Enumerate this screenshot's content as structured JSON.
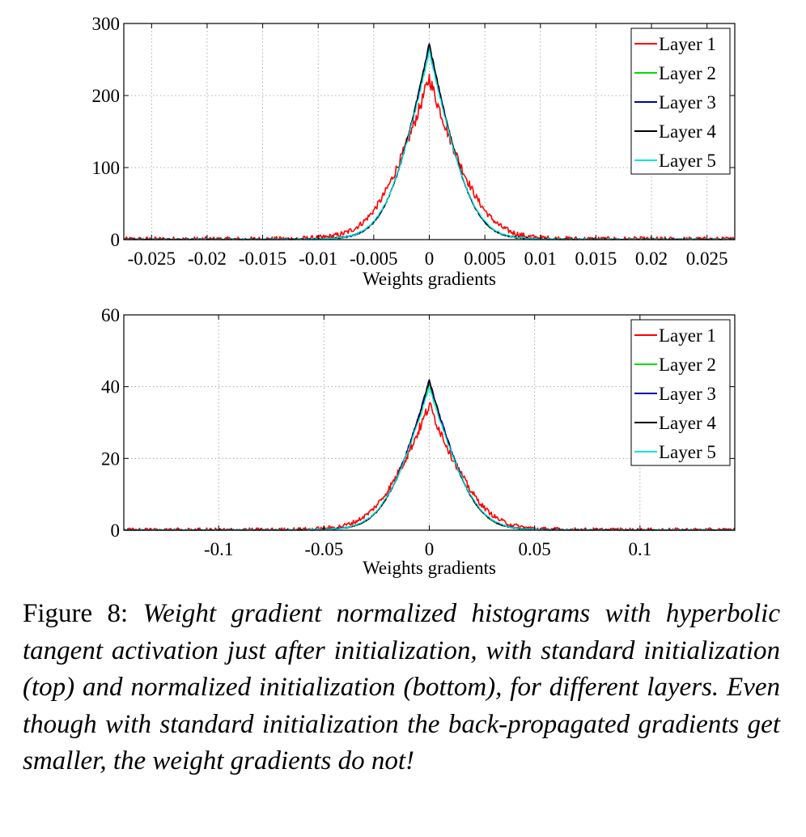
{
  "chart_data": [
    {
      "type": "line",
      "id": "top",
      "xlabel": "Weights gradients",
      "ylabel": "",
      "xlim": [
        -0.0275,
        0.0275
      ],
      "ylim": [
        0,
        300
      ],
      "xticks": [
        -0.025,
        -0.02,
        -0.015,
        -0.01,
        -0.005,
        0,
        0.005,
        0.01,
        0.015,
        0.02,
        0.025
      ],
      "xtick_labels": [
        "-0.025",
        "-0.02",
        "-0.015",
        "-0.01",
        "-0.005",
        "0",
        "0.005",
        "0.01",
        "0.015",
        "0.02",
        "0.025"
      ],
      "yticks": [
        0,
        100,
        200,
        300
      ],
      "ytick_labels": [
        "0",
        "100",
        "200",
        "300"
      ],
      "grid": true,
      "legend": "top-right",
      "series": [
        {
          "name": "Layer 1",
          "color": "#ff0000",
          "peak": 225,
          "width": 0.0024,
          "noise": 10
        },
        {
          "name": "Layer 2",
          "color": "#00dd00",
          "peak": 270,
          "width": 0.0019,
          "noise": 3
        },
        {
          "name": "Layer 3",
          "color": "#0000aa",
          "peak": 272,
          "width": 0.0019,
          "noise": 3
        },
        {
          "name": "Layer 4",
          "color": "#000000",
          "peak": 273,
          "width": 0.0019,
          "noise": 3
        },
        {
          "name": "Layer 5",
          "color": "#00e5e5",
          "peak": 262,
          "width": 0.00195,
          "noise": 3
        }
      ]
    },
    {
      "type": "line",
      "id": "bottom",
      "xlabel": "Weights gradients",
      "ylabel": "",
      "xlim": [
        -0.145,
        0.145
      ],
      "ylim": [
        0,
        60
      ],
      "xticks": [
        -0.1,
        -0.05,
        0,
        0.05,
        0.1
      ],
      "xtick_labels": [
        "-0.1",
        "-0.05",
        "0",
        "0.05",
        "0.1"
      ],
      "yticks": [
        0,
        20,
        40,
        60
      ],
      "ytick_labels": [
        "0",
        "20",
        "40",
        "60"
      ],
      "grid": true,
      "legend": "top-right",
      "series": [
        {
          "name": "Layer 1",
          "color": "#ff0000",
          "peak": 35,
          "width": 0.0125,
          "noise": 1.6
        },
        {
          "name": "Layer 2",
          "color": "#00dd00",
          "peak": 41,
          "width": 0.0105,
          "noise": 0.5
        },
        {
          "name": "Layer 3",
          "color": "#0000aa",
          "peak": 42,
          "width": 0.0105,
          "noise": 0.5
        },
        {
          "name": "Layer 4",
          "color": "#000000",
          "peak": 41.5,
          "width": 0.0105,
          "noise": 0.5
        },
        {
          "name": "Layer 5",
          "color": "#00e5e5",
          "peak": 40,
          "width": 0.0108,
          "noise": 0.5
        }
      ]
    }
  ],
  "caption": {
    "label": "Figure 8:",
    "text": "Weight gradient normalized histograms with hyperbolic tangent activation just after initialization, with standard initialization (top) and normalized initialization (bottom), for different layers. Even though with standard initialization the back-propagated gradients get smaller, the weight gradients do not!"
  }
}
